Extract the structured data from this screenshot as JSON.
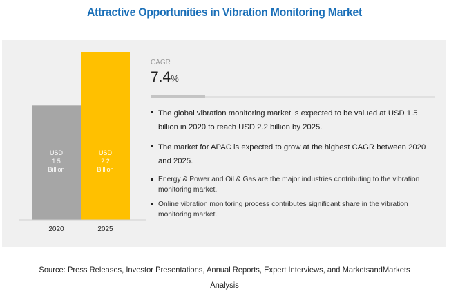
{
  "title": "Attractive Opportunities in Vibration Monitoring Market",
  "colors": {
    "title": "#1a6fb8",
    "panel_background": "#f0f0f0",
    "bar_2020": "#a6a6a6",
    "bar_2025": "#ffc000",
    "bar_label": "#ffffff"
  },
  "chart_data": {
    "type": "bar",
    "title": "",
    "xlabel": "",
    "ylabel": "",
    "categories": [
      "2020",
      "2025"
    ],
    "values": [
      1.5,
      2.2
    ],
    "units": "USD Billion",
    "data_labels": [
      [
        "USD",
        "1.5",
        "Billion"
      ],
      [
        "USD",
        "2.2",
        "Billion"
      ]
    ],
    "ylim": [
      0,
      2.2
    ],
    "grid": false,
    "legend": "none"
  },
  "cagr": {
    "label": "CAGR",
    "value": "7.4",
    "unit": "%"
  },
  "bullets": [
    "The global vibration monitoring market is expected to be valued at USD 1.5 billion in 2020 to reach USD 2.2 billion by 2025.",
    "The market for APAC is expected to grow at the highest CAGR between 2020 and 2025.",
    "Energy & Power and Oil & Gas are the major industries contributing to the vibration monitoring market.",
    "Online vibration monitoring process contributes significant share in the vibration monitoring market."
  ],
  "source": "Source: Press Releases, Investor Presentations, Annual Reports, Expert Interviews, and MarketsandMarkets Analysis"
}
